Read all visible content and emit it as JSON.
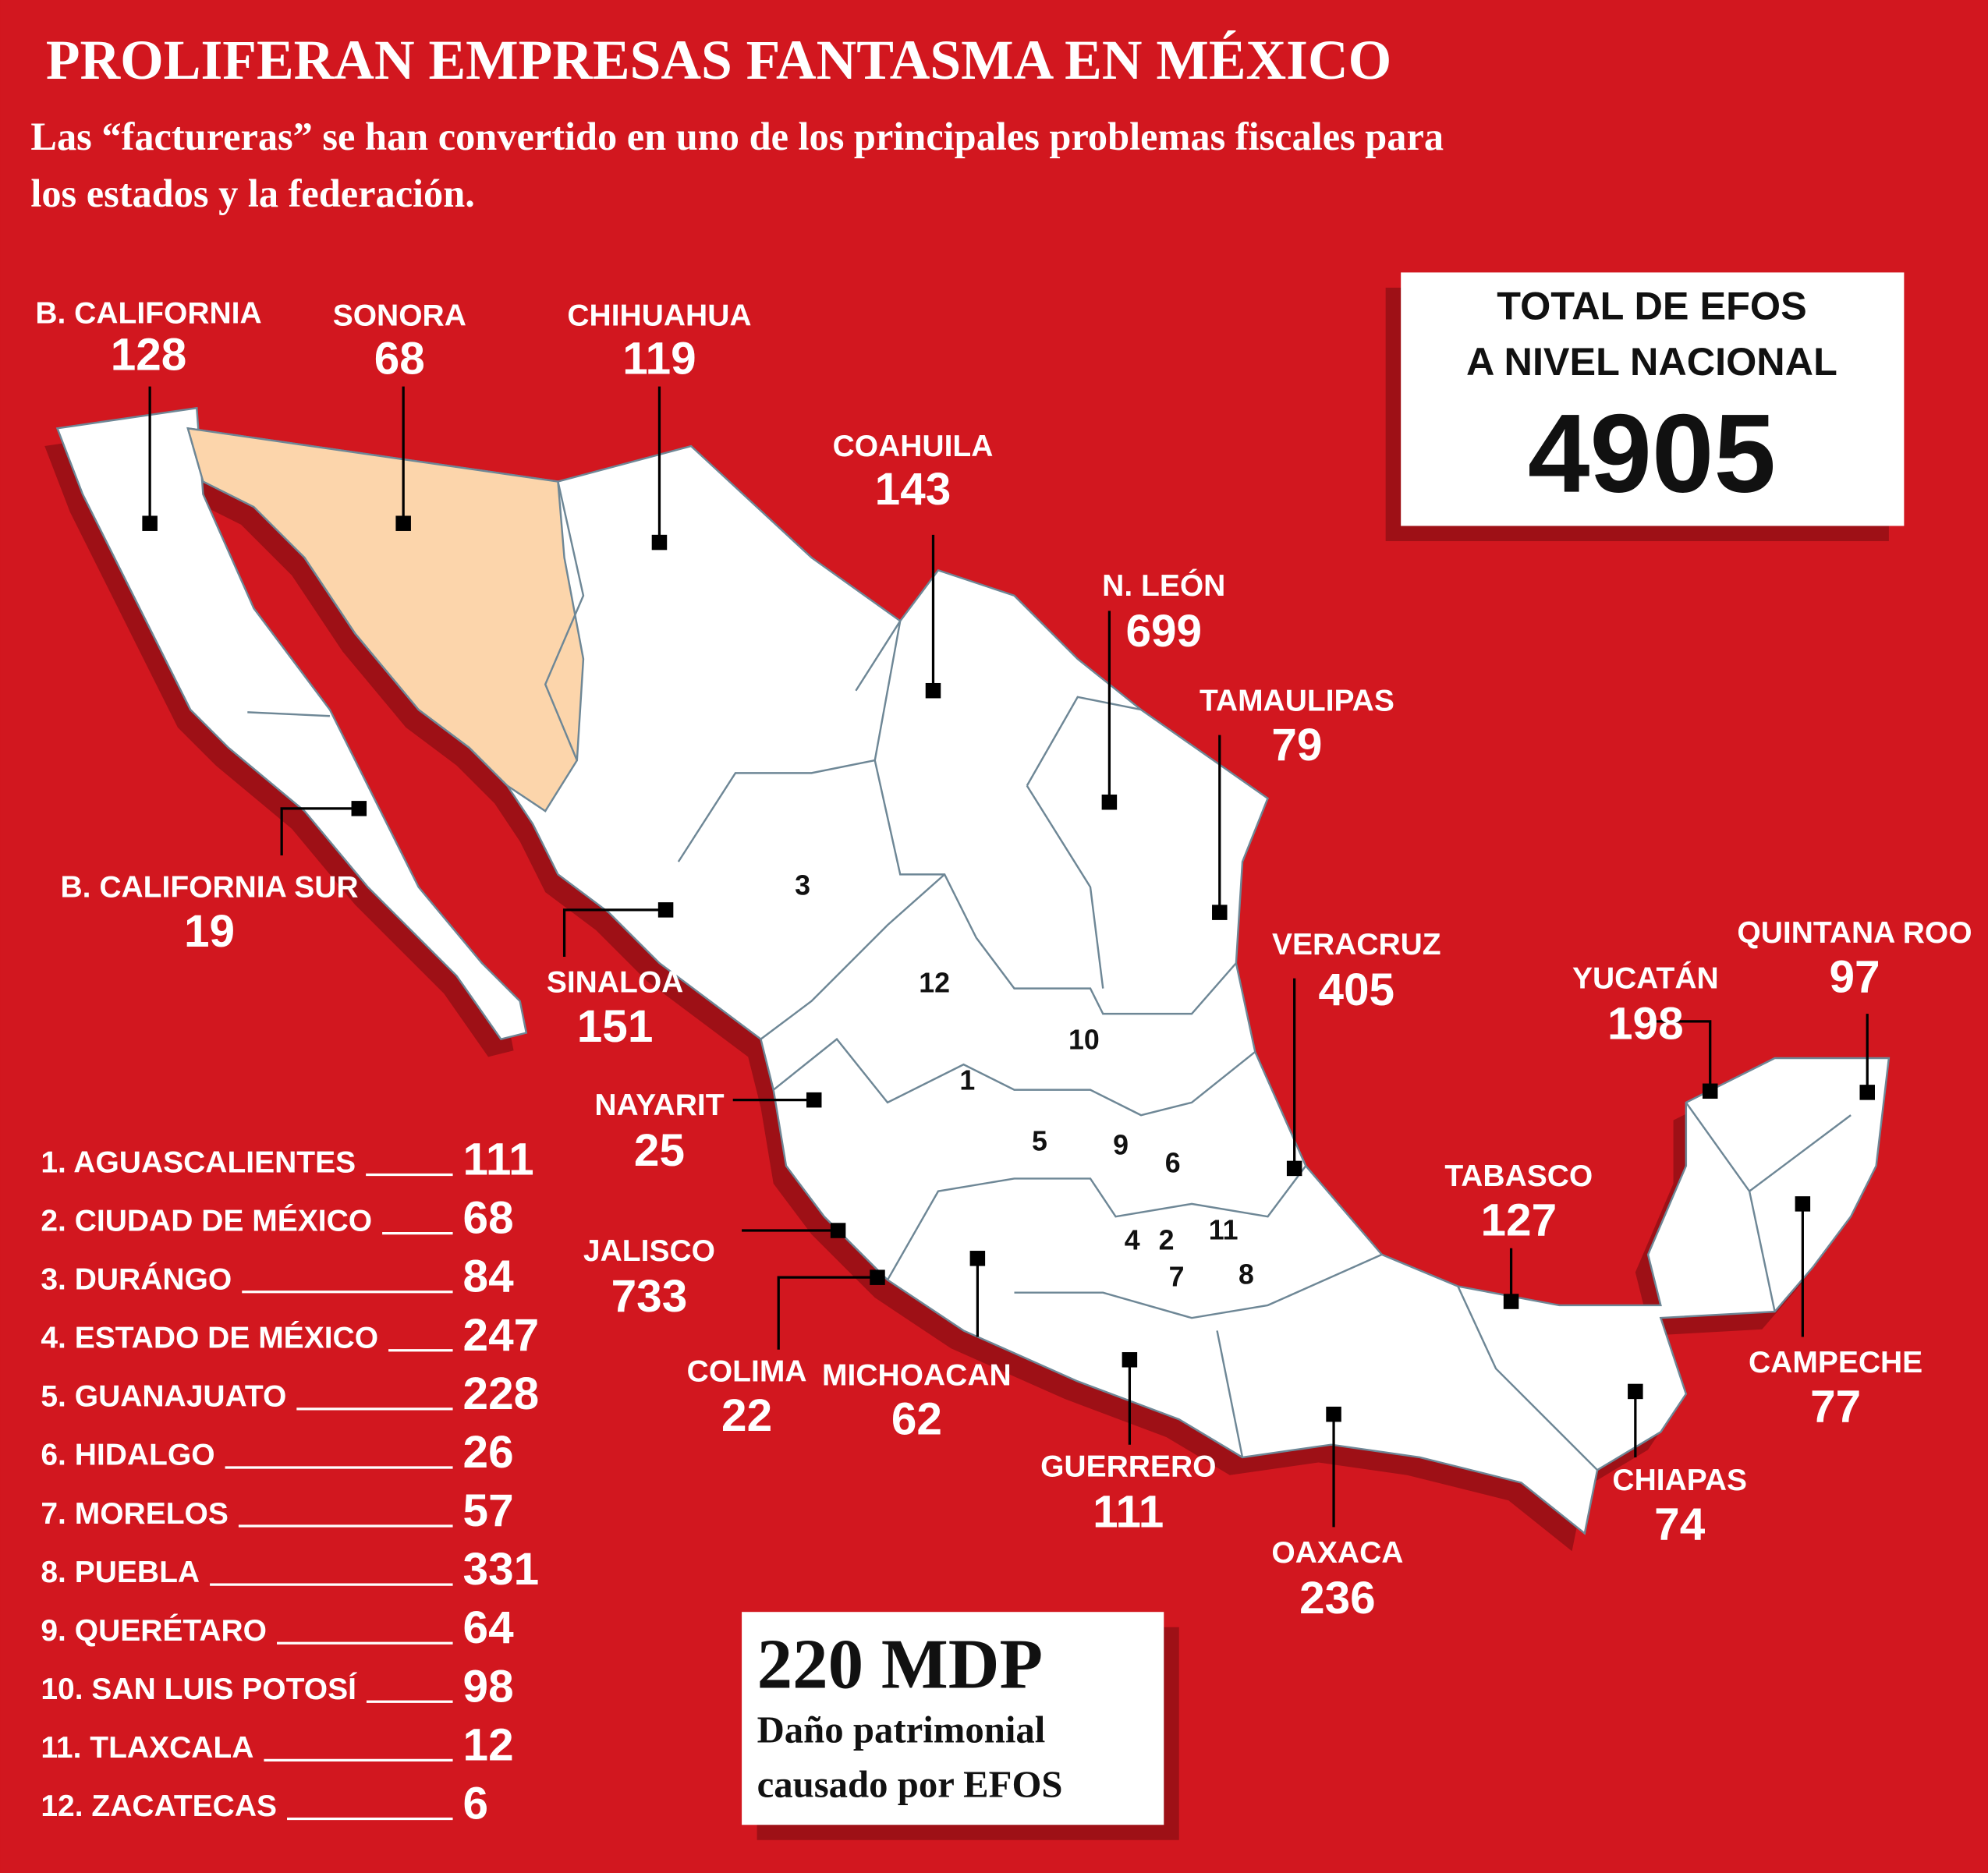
{
  "title": "PROLIFERAN EMPRESAS FANTASMA EN MÉXICO",
  "subtitle_lines": [
    "Las “factureras” se han convertido en uno de los principales problemas fiscales para",
    "los estados y la federación."
  ],
  "total": {
    "label_lines": [
      "TOTAL DE EFOS",
      "A NIVEL NACIONAL"
    ],
    "value": 4905
  },
  "states": [
    {
      "name": "B. CALIFORNIA",
      "value": 128
    },
    {
      "name": "SONORA",
      "value": 68
    },
    {
      "name": "CHIHUAHUA",
      "value": 119
    },
    {
      "name": "COAHUILA",
      "value": 143
    },
    {
      "name": "N. LEÓN",
      "value": 699
    },
    {
      "name": "TAMAULIPAS",
      "value": 79
    },
    {
      "name": "VERACRUZ",
      "value": 405
    },
    {
      "name": "YUCATÁN",
      "value": 198
    },
    {
      "name": "QUINTANA ROO",
      "value": 97
    },
    {
      "name": "TABASCO",
      "value": 127
    },
    {
      "name": "CAMPECHE",
      "value": 77
    },
    {
      "name": "CHIAPAS",
      "value": 74
    },
    {
      "name": "OAXACA",
      "value": 236
    },
    {
      "name": "GUERRERO",
      "value": 111
    },
    {
      "name": "MICHOACAN",
      "value": 62
    },
    {
      "name": "COLIMA",
      "value": 22
    },
    {
      "name": "JALISCO",
      "value": 733
    },
    {
      "name": "NAYARIT",
      "value": 25
    },
    {
      "name": "SINALOA",
      "value": 151
    },
    {
      "name": "B. CALIFORNIA SUR",
      "value": 19
    }
  ],
  "legend": [
    {
      "label": "1. AGUASCALIENTES",
      "value": 111
    },
    {
      "label": "2. CIUDAD DE MÉXICO",
      "value": 68
    },
    {
      "label": "3. DURÁNGO",
      "value": 84
    },
    {
      "label": "4. ESTADO DE MÉXICO",
      "value": 247
    },
    {
      "label": "5. GUANAJUATO",
      "value": 228
    },
    {
      "label": "6. HIDALGO",
      "value": 26
    },
    {
      "label": "7. MORELOS",
      "value": 57
    },
    {
      "label": "8. PUEBLA",
      "value": 331
    },
    {
      "label": "9. QUERÉTARO",
      "value": 64
    },
    {
      "label": "10. SAN LUIS POTOSÍ",
      "value": 98
    },
    {
      "label": "11. TLAXCALA",
      "value": 12
    },
    {
      "label": "12. ZACATECAS",
      "value": 6
    }
  ],
  "map_numbers": [
    "1",
    "2",
    "3",
    "4",
    "5",
    "6",
    "7",
    "8",
    "9",
    "10",
    "11",
    "12"
  ],
  "damage": {
    "amount": "220 MDP",
    "caption_lines": [
      "Daño patrimonial",
      "causado por EFOS"
    ]
  }
}
